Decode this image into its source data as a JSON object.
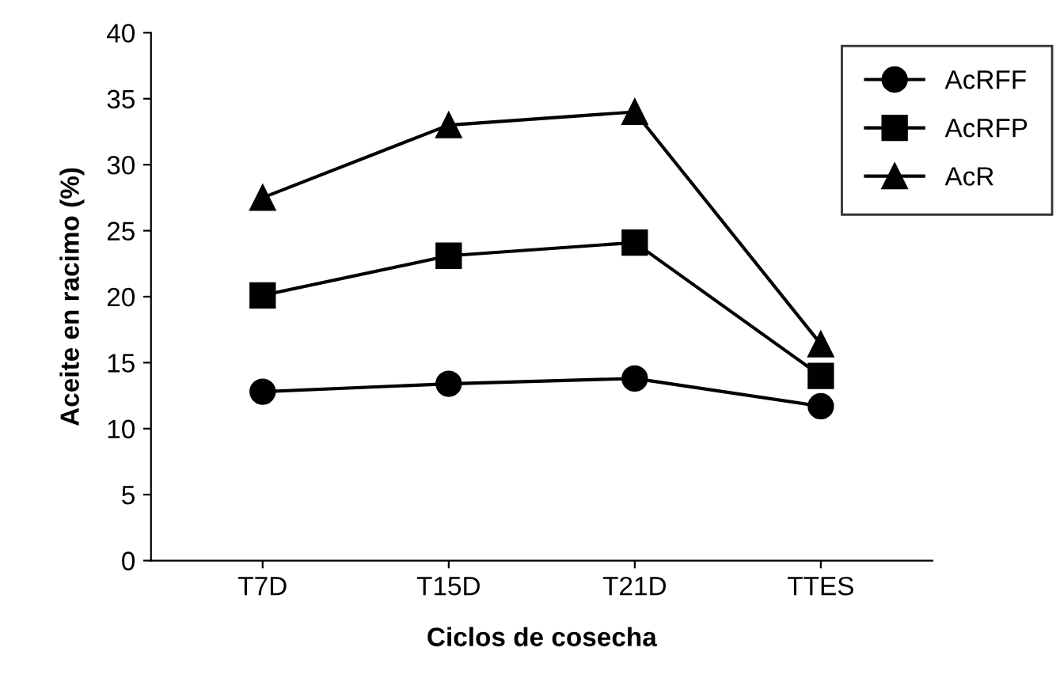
{
  "chart_data": {
    "type": "line",
    "xlabel": "Ciclos de cosecha",
    "ylabel": "Aceite en racimo (%)",
    "categories": [
      "T7D",
      "T15D",
      "T21D",
      "TTES"
    ],
    "series": [
      {
        "name": "AcRFF",
        "color": "#000000",
        "marker": "circle",
        "values": [
          12.8,
          13.4,
          13.8,
          11.7
        ]
      },
      {
        "name": "AcRFP",
        "color": "#010101",
        "marker": "square",
        "values": [
          20.1,
          23.1,
          24.1,
          14.0
        ]
      },
      {
        "name": "AcR",
        "color": "#020202",
        "marker": "triangle",
        "values": [
          27.5,
          33.0,
          34.0,
          16.4
        ]
      }
    ],
    "ylim": [
      0,
      40
    ],
    "yticks": [
      0,
      5,
      10,
      15,
      20,
      25,
      30,
      35,
      40
    ],
    "grid": false,
    "legend": "top right",
    "line_style": "solid"
  }
}
